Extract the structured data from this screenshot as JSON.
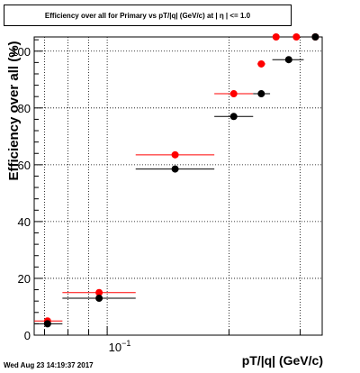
{
  "chart_data": {
    "type": "scatter",
    "title": "Efficiency over all for Primary vs pT/|q| (GeV/c) at | η | <= 1.0",
    "xlabel": "pT/|q| (GeV/c)",
    "ylabel": "Efficiency over all (%)",
    "xscale": "log",
    "xlim": [
      0.066,
      0.34
    ],
    "ylim": [
      0,
      105
    ],
    "grid": true,
    "y_ticks": [
      "0",
      "20",
      "40",
      "60",
      "80",
      "100"
    ],
    "x_tick_label_base": "10",
    "x_tick_label_exp": "−1",
    "series": [
      {
        "color": "#ff0000",
        "points": [
          {
            "x": 0.0712,
            "xlo": 0.066,
            "xhi": 0.0775,
            "y": 5
          },
          {
            "x": 0.0955,
            "xlo": 0.0775,
            "xhi": 0.1176,
            "y": 15
          },
          {
            "x": 0.1472,
            "xlo": 0.1176,
            "xhi": 0.184,
            "y": 63.5
          },
          {
            "x": 0.2055,
            "xlo": 0.184,
            "xhi": 0.2295,
            "y": 85
          },
          {
            "x": 0.2404,
            "xlo": 0.235,
            "xhi": 0.246,
            "y": 95.5
          },
          {
            "x": 0.2615,
            "xlo": 0.257,
            "xhi": 0.266,
            "y": 105
          },
          {
            "x": 0.2935,
            "xlo": 0.288,
            "xhi": 0.299,
            "y": 105
          },
          {
            "x": 0.327,
            "xlo": 0.322,
            "xhi": 0.332,
            "y": 105
          }
        ]
      },
      {
        "color": "#000000",
        "points": [
          {
            "x": 0.0712,
            "xlo": 0.066,
            "xhi": 0.0775,
            "y": 4
          },
          {
            "x": 0.0955,
            "xlo": 0.0775,
            "xhi": 0.1176,
            "y": 13
          },
          {
            "x": 0.1472,
            "xlo": 0.1176,
            "xhi": 0.184,
            "y": 58.5
          },
          {
            "x": 0.2055,
            "xlo": 0.184,
            "xhi": 0.2295,
            "y": 77
          },
          {
            "x": 0.2404,
            "xlo": 0.2295,
            "xhi": 0.2527,
            "y": 85
          },
          {
            "x": 0.281,
            "xlo": 0.256,
            "xhi": 0.306,
            "y": 97
          },
          {
            "x": 0.327,
            "xlo": 0.322,
            "xhi": 0.332,
            "y": 105
          }
        ]
      }
    ]
  },
  "footer": {
    "timestamp": "Wed Aug 23 14:19:37 2017"
  }
}
